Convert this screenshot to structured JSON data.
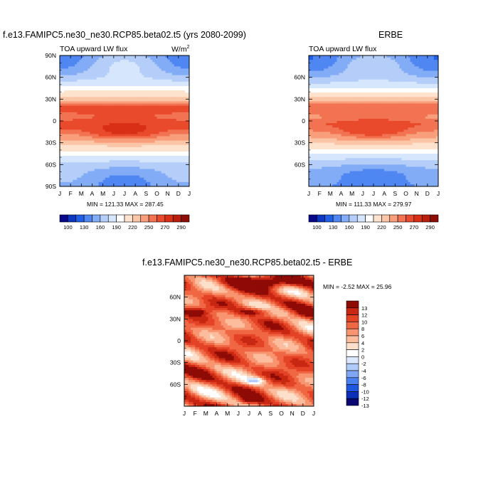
{
  "colors": {
    "abs_scale": [
      "#08088a",
      "#0e37c0",
      "#1f5fe6",
      "#4f86f2",
      "#83acf6",
      "#b4cef9",
      "#d6e6fc",
      "#ffffff",
      "#fde2cd",
      "#fbc5a7",
      "#f99e7b",
      "#f27352",
      "#ea4a2c",
      "#d82f17",
      "#b8200d",
      "#8c0d06"
    ],
    "diff_scale": [
      "#080870",
      "#0b2fb6",
      "#1d56e0",
      "#4a7ff0",
      "#7ea6f5",
      "#b0cbf9",
      "#dbe8fd",
      "#ffffff",
      "#fde0cb",
      "#fbbd9d",
      "#f8946f",
      "#f06744",
      "#e44326",
      "#c82712",
      "#8f0b06"
    ]
  },
  "panels": {
    "left": {
      "title": "f.e13.FAMIPC5.ne30_ne30.RCP85.beta02.t5 (yrs 2080-2099)",
      "left_label": "TOA upward LW flux",
      "units_base": "W/m",
      "units_exp": "2",
      "stats": "MIN = 121.33 MAX = 287.45",
      "y_ticks": [
        "90N",
        "60N",
        "30N",
        "0",
        "30S",
        "60S",
        "90S"
      ],
      "x_ticks": [
        "J",
        "F",
        "M",
        "A",
        "M",
        "J",
        "J",
        "A",
        "S",
        "O",
        "N",
        "D",
        "J"
      ],
      "colorbar_labels": [
        "100",
        "130",
        "160",
        "190",
        "220",
        "250",
        "270",
        "290"
      ]
    },
    "right": {
      "title": "ERBE",
      "left_label": "TOA upward LW flux",
      "stats": "MIN = 111.33 MAX = 279.97",
      "y_ticks": [
        "60N",
        "30N",
        "0",
        "30S",
        "60S"
      ],
      "x_ticks": [
        "J",
        "F",
        "M",
        "A",
        "M",
        "J",
        "J",
        "A",
        "S",
        "O",
        "N",
        "D",
        "J"
      ],
      "colorbar_labels": [
        "100",
        "130",
        "160",
        "190",
        "220",
        "250",
        "270",
        "290"
      ]
    },
    "bottom": {
      "title": "f.e13.FAMIPC5.ne30_ne30.RCP85.beta02.t5 - ERBE",
      "stats": "MIN =  -2.52 MAX =  25.96",
      "y_ticks": [
        "60N",
        "30N",
        "0",
        "30S",
        "60S"
      ],
      "x_ticks": [
        "J",
        "F",
        "M",
        "A",
        "M",
        "J",
        "J",
        "A",
        "S",
        "O",
        "N",
        "D",
        "J"
      ],
      "colorbar_labels": [
        "13",
        "12",
        "10",
        "8",
        "6",
        "4",
        "2",
        "0",
        "-2",
        "-4",
        "-6",
        "-8",
        "-10",
        "-12",
        "-13"
      ]
    }
  },
  "chart_data": [
    {
      "type": "heatmap",
      "title": "f.e13.FAMIPC5.ne30_ne30.RCP85.beta02.t5 (yrs 2080-2099)",
      "ylabel": "",
      "x": [
        "J",
        "F",
        "M",
        "A",
        "M",
        "J",
        "J",
        "A",
        "S",
        "O",
        "N",
        "D",
        "J"
      ],
      "y": [
        "90N",
        "60N",
        "30N",
        "0",
        "30S",
        "60S",
        "90S"
      ],
      "value_range": [
        121.33,
        287.45
      ],
      "contour_levels": [
        100,
        130,
        160,
        190,
        220,
        250,
        270,
        290
      ]
    },
    {
      "type": "heatmap",
      "title": "ERBE",
      "x": [
        "J",
        "F",
        "M",
        "A",
        "M",
        "J",
        "J",
        "A",
        "S",
        "O",
        "N",
        "D",
        "J"
      ],
      "y": [
        "60N",
        "30N",
        "0",
        "30S",
        "60S"
      ],
      "value_range": [
        111.33,
        279.97
      ],
      "contour_levels": [
        100,
        130,
        160,
        190,
        220,
        250,
        270,
        290
      ]
    },
    {
      "type": "heatmap",
      "title": "f.e13.FAMIPC5.ne30_ne30.RCP85.beta02.t5 - ERBE",
      "x": [
        "J",
        "F",
        "M",
        "A",
        "M",
        "J",
        "J",
        "A",
        "S",
        "O",
        "N",
        "D",
        "J"
      ],
      "y": [
        "60N",
        "30N",
        "0",
        "30S",
        "60S"
      ],
      "value_range": [
        -2.52,
        25.96
      ],
      "contour_levels": [
        -13,
        -12,
        -10,
        -8,
        -6,
        -4,
        -2,
        0,
        2,
        4,
        6,
        8,
        10,
        12,
        13
      ]
    }
  ]
}
